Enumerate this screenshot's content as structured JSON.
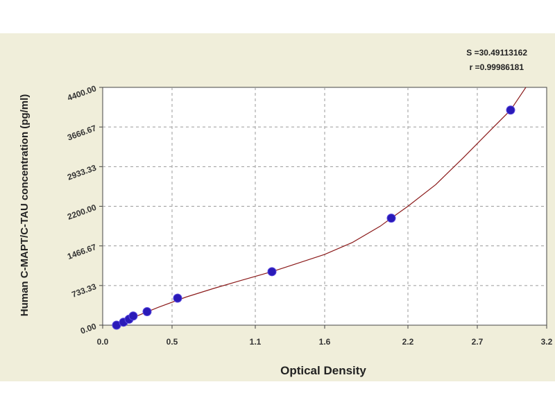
{
  "chart_data": {
    "type": "scatter",
    "title": "",
    "xlabel": "Optical Density",
    "ylabel": "Human C-MAPT/C-TAU concentration (pg/ml)",
    "xlim": [
      0.0,
      3.2
    ],
    "ylim": [
      0.0,
      4400.0
    ],
    "x_ticks": [
      0.0,
      0.5,
      1.1,
      1.6,
      2.2,
      2.7,
      3.2
    ],
    "x_tick_labels": [
      "0.0",
      "0.5",
      "1.1",
      "1.6",
      "2.2",
      "2.7",
      "3.2"
    ],
    "y_ticks": [
      0.0,
      733.33,
      1466.67,
      2200.0,
      2933.33,
      3666.67,
      4400.0
    ],
    "y_tick_labels": [
      "0.00",
      "733.33",
      "1466.67",
      "2200.00",
      "2933.33",
      "3666.67",
      "4400.00"
    ],
    "grid": true,
    "series": [
      {
        "marker_color": "#2a1ab8",
        "line_color": "#8b1a1a",
        "points": [
          {
            "x": 0.1,
            "y": 0
          },
          {
            "x": 0.15,
            "y": 55
          },
          {
            "x": 0.19,
            "y": 110
          },
          {
            "x": 0.22,
            "y": 170
          },
          {
            "x": 0.32,
            "y": 250
          },
          {
            "x": 0.54,
            "y": 500
          },
          {
            "x": 1.22,
            "y": 990
          },
          {
            "x": 2.08,
            "y": 1980
          },
          {
            "x": 2.94,
            "y": 3980
          }
        ],
        "curve": [
          {
            "x": 0.08,
            "y": 0
          },
          {
            "x": 0.2,
            "y": 120
          },
          {
            "x": 0.4,
            "y": 330
          },
          {
            "x": 0.6,
            "y": 520
          },
          {
            "x": 0.8,
            "y": 680
          },
          {
            "x": 1.0,
            "y": 830
          },
          {
            "x": 1.22,
            "y": 990
          },
          {
            "x": 1.4,
            "y": 1140
          },
          {
            "x": 1.6,
            "y": 1310
          },
          {
            "x": 1.8,
            "y": 1530
          },
          {
            "x": 2.0,
            "y": 1830
          },
          {
            "x": 2.08,
            "y": 1980
          },
          {
            "x": 2.2,
            "y": 2200
          },
          {
            "x": 2.4,
            "y": 2600
          },
          {
            "x": 2.6,
            "y": 3100
          },
          {
            "x": 2.8,
            "y": 3620
          },
          {
            "x": 2.94,
            "y": 3980
          },
          {
            "x": 3.05,
            "y": 4400
          }
        ]
      }
    ],
    "annotations": [
      "S =30.49113162",
      "r =0.99986181"
    ]
  },
  "colors": {
    "panel_background": "#f0eeda",
    "plot_background": "#ffffff",
    "grid": "#9a9a9a"
  }
}
